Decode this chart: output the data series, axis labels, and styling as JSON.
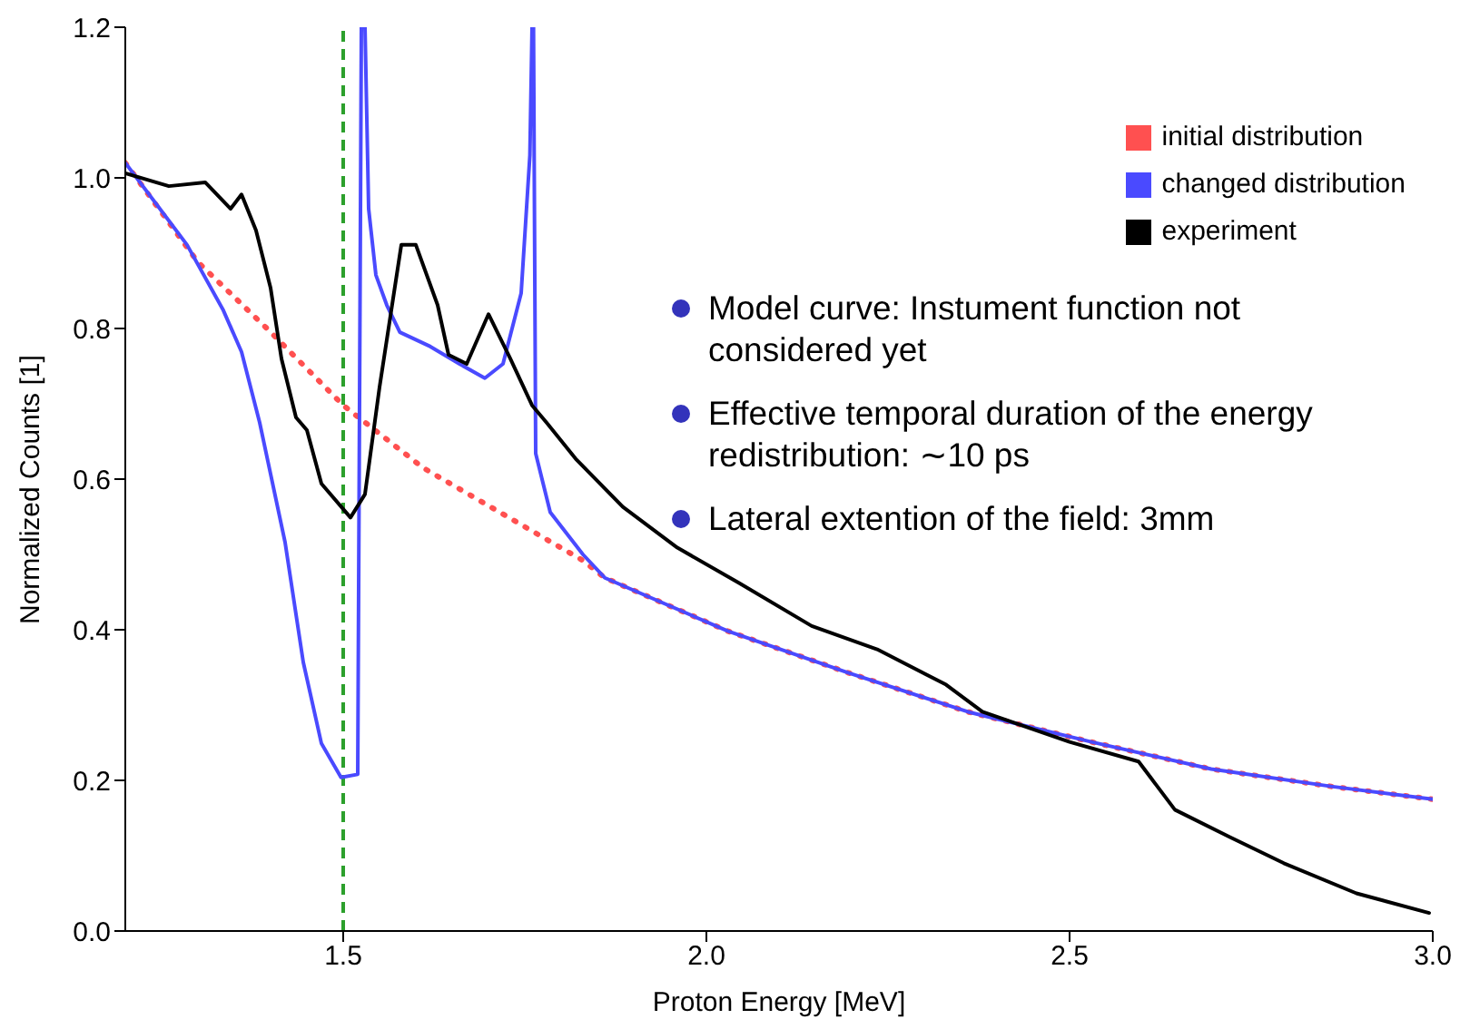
{
  "chart_data": {
    "type": "line",
    "xlabel": "Proton Energy [MeV]",
    "ylabel": "Normalized Counts [1]",
    "xlim": [
      1.2,
      3.0
    ],
    "ylim": [
      0,
      1.2
    ],
    "xticks": [
      1.5,
      {
        "value": 2,
        "label": "2.0"
      },
      2.5,
      {
        "value": 3,
        "label": "3.0"
      }
    ],
    "yticks": [
      {
        "value": 0,
        "label": "0.0"
      },
      0.2,
      0.4,
      0.6,
      0.8,
      {
        "value": 1,
        "label": "1.0"
      },
      1.2
    ],
    "legend": "top right",
    "grid": false,
    "marker": "none",
    "ref_lines": [
      {
        "axis": "x",
        "value": 1.5,
        "color": "#2ca02c",
        "line_style": "dashed"
      }
    ],
    "annotations": [
      "Model curve: Instument function not considered yet",
      "Effective temporal duration of the energy redistribution: ∼10 ps",
      "Lateral extention of the field: 3mm"
    ],
    "series": [
      {
        "name": "initial distribution",
        "color": "#ff5050",
        "line_style": "dotted",
        "x": [
          1.2,
          1.3,
          1.395,
          1.5,
          1.61,
          1.83,
          1.86,
          2.03,
          2.195,
          2.36,
          2.53,
          2.695,
          2.86,
          3.0
        ],
        "values": [
          1.02,
          0.888,
          0.8,
          0.698,
          0.615,
          0.492,
          0.469,
          0.398,
          0.343,
          0.291,
          0.251,
          0.215,
          0.192,
          0.175
        ]
      },
      {
        "name": "changed distribution",
        "color": "#4a4aff",
        "line_style": "solid",
        "x": [
          1.2,
          1.285,
          1.335,
          1.36,
          1.385,
          1.42,
          1.445,
          1.47,
          1.497,
          1.52,
          1.525,
          1.53,
          1.535,
          1.545,
          1.56,
          1.578,
          1.62,
          1.66,
          1.695,
          1.72,
          1.745,
          1.757,
          1.76,
          1.762,
          1.765,
          1.785,
          1.83,
          1.86,
          2.03,
          2.195,
          2.36,
          2.53,
          2.695,
          2.86,
          3.0
        ],
        "values": [
          1.02,
          0.911,
          0.824,
          0.769,
          0.675,
          0.516,
          0.357,
          0.249,
          0.204,
          0.208,
          1.2,
          1.2,
          0.959,
          0.871,
          0.831,
          0.795,
          0.776,
          0.753,
          0.734,
          0.753,
          0.847,
          1.03,
          1.2,
          1.2,
          0.634,
          0.556,
          0.5,
          0.469,
          0.398,
          0.343,
          0.291,
          0.251,
          0.215,
          0.192,
          0.175
        ]
      },
      {
        "name": "experiment",
        "color": "#000000",
        "line_style": "solid",
        "x": [
          1.2,
          1.26,
          1.31,
          1.345,
          1.36,
          1.38,
          1.4,
          1.415,
          1.435,
          1.45,
          1.47,
          1.51,
          1.53,
          1.55,
          1.58,
          1.6,
          1.63,
          1.645,
          1.67,
          1.7,
          1.73,
          1.76,
          1.78,
          1.82,
          1.885,
          1.96,
          2.045,
          2.145,
          2.235,
          2.33,
          2.38,
          2.5,
          2.595,
          2.645,
          2.72,
          2.795,
          2.895,
          2.995
        ],
        "values": [
          1.006,
          0.989,
          0.994,
          0.959,
          0.978,
          0.93,
          0.854,
          0.76,
          0.682,
          0.665,
          0.594,
          0.549,
          0.58,
          0.722,
          0.911,
          0.911,
          0.831,
          0.765,
          0.753,
          0.819,
          0.76,
          0.698,
          0.675,
          0.627,
          0.563,
          0.509,
          0.462,
          0.405,
          0.374,
          0.327,
          0.291,
          0.251,
          0.225,
          0.161,
          0.125,
          0.09,
          0.05,
          0.024
        ]
      }
    ]
  }
}
